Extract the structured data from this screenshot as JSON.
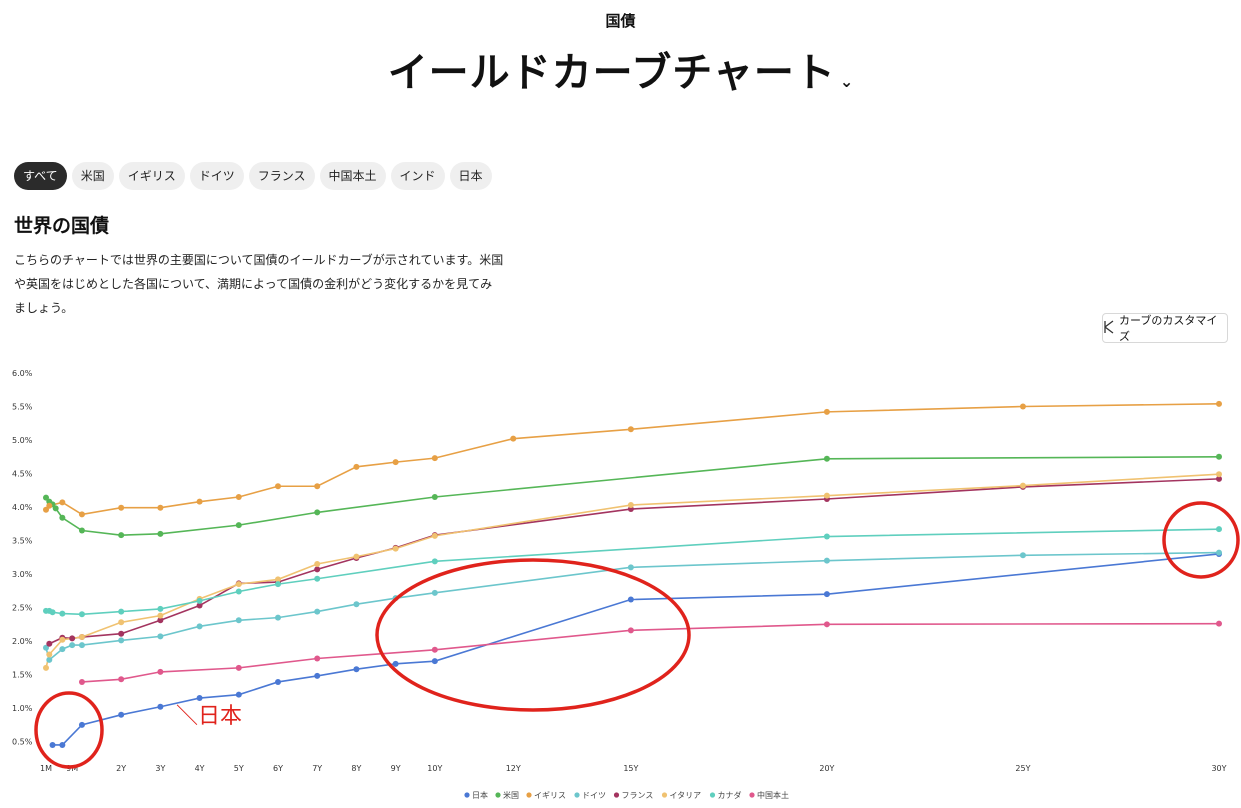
{
  "header": {
    "subtitle": "国債",
    "title": "イールドカーブチャート",
    "chevron": "⌄"
  },
  "tabs": [
    "すべて",
    "米国",
    "イギリス",
    "ドイツ",
    "フランス",
    "中国本土",
    "インド",
    "日本"
  ],
  "section": {
    "title": "世界の国債",
    "description": "こちらのチャートでは世界の主要国について国債のイールドカーブが示されています。米国や英国をはじめとした各国について、満期によって国債の金利がどう変化するかを見てみましょう。"
  },
  "customize_button": {
    "label": "カーブのカスタマイズ",
    "icon": "curve-sliders-icon"
  },
  "annotation": {
    "label": "＼日本",
    "color": "#e0231c"
  },
  "chart_data": {
    "type": "line",
    "x_unit": "years",
    "x_ticks": [
      {
        "x": 0.083,
        "label": "1M"
      },
      {
        "x": 0.75,
        "label": "9M"
      },
      {
        "x": 2,
        "label": "2Y"
      },
      {
        "x": 3,
        "label": "3Y"
      },
      {
        "x": 4,
        "label": "4Y"
      },
      {
        "x": 5,
        "label": "5Y"
      },
      {
        "x": 6,
        "label": "6Y"
      },
      {
        "x": 7,
        "label": "7Y"
      },
      {
        "x": 8,
        "label": "8Y"
      },
      {
        "x": 9,
        "label": "9Y"
      },
      {
        "x": 10,
        "label": "10Y"
      },
      {
        "x": 12,
        "label": "12Y"
      },
      {
        "x": 15,
        "label": "15Y"
      },
      {
        "x": 20,
        "label": "20Y"
      },
      {
        "x": 25,
        "label": "25Y"
      },
      {
        "x": 30,
        "label": "30Y"
      }
    ],
    "y_ticks": [
      "0.5%",
      "1.0%",
      "1.5%",
      "2.0%",
      "2.5%",
      "3.0%",
      "3.5%",
      "4.0%",
      "4.5%",
      "5.0%",
      "5.5%",
      "6.0%"
    ],
    "ylim": [
      0.3,
      6.0
    ],
    "legend_position": "bottom",
    "series": [
      {
        "name": "日本",
        "color": "#4a78d4",
        "points": [
          [
            0.25,
            0.45
          ],
          [
            0.5,
            0.45
          ],
          [
            1,
            0.75
          ],
          [
            2,
            0.9
          ],
          [
            3,
            1.02
          ],
          [
            4,
            1.15
          ],
          [
            5,
            1.2
          ],
          [
            6,
            1.39
          ],
          [
            7,
            1.48
          ],
          [
            8,
            1.58
          ],
          [
            9,
            1.66
          ],
          [
            10,
            1.7
          ],
          [
            15,
            2.62
          ],
          [
            20,
            2.7
          ],
          [
            30,
            3.3
          ]
        ]
      },
      {
        "name": "米国",
        "color": "#55b657",
        "points": [
          [
            0.083,
            4.14
          ],
          [
            0.167,
            4.08
          ],
          [
            0.25,
            4.04
          ],
          [
            0.33,
            3.98
          ],
          [
            0.5,
            3.84
          ],
          [
            1,
            3.65
          ],
          [
            2,
            3.58
          ],
          [
            3,
            3.6
          ],
          [
            5,
            3.73
          ],
          [
            7,
            3.92
          ],
          [
            10,
            4.15
          ],
          [
            20,
            4.72
          ],
          [
            30,
            4.75
          ]
        ]
      },
      {
        "name": "イギリス",
        "color": "#e7a045",
        "points": [
          [
            0.083,
            3.96
          ],
          [
            0.167,
            4.02
          ],
          [
            0.5,
            4.07
          ],
          [
            1,
            3.89
          ],
          [
            2,
            3.99
          ],
          [
            3,
            3.99
          ],
          [
            4,
            4.08
          ],
          [
            5,
            4.15
          ],
          [
            6,
            4.31
          ],
          [
            7,
            4.31
          ],
          [
            8,
            4.6
          ],
          [
            9,
            4.67
          ],
          [
            10,
            4.73
          ],
          [
            12,
            5.02
          ],
          [
            15,
            5.16
          ],
          [
            20,
            5.42
          ],
          [
            25,
            5.5
          ],
          [
            30,
            5.54
          ]
        ]
      },
      {
        "name": "ドイツ",
        "color": "#6cc6cc",
        "points": [
          [
            0.083,
            1.9
          ],
          [
            0.167,
            1.72
          ],
          [
            0.5,
            1.88
          ],
          [
            0.75,
            1.94
          ],
          [
            1,
            1.94
          ],
          [
            2,
            2.01
          ],
          [
            3,
            2.07
          ],
          [
            4,
            2.22
          ],
          [
            5,
            2.31
          ],
          [
            6,
            2.35
          ],
          [
            7,
            2.44
          ],
          [
            8,
            2.55
          ],
          [
            9,
            2.64
          ],
          [
            10,
            2.72
          ],
          [
            15,
            3.1
          ],
          [
            20,
            3.2
          ],
          [
            25,
            3.28
          ],
          [
            30,
            3.32
          ]
        ]
      },
      {
        "name": "フランス",
        "color": "#a3345f",
        "points": [
          [
            0.167,
            1.96
          ],
          [
            0.5,
            2.05
          ],
          [
            0.75,
            2.04
          ],
          [
            1,
            2.06
          ],
          [
            2,
            2.11
          ],
          [
            3,
            2.31
          ],
          [
            4,
            2.53
          ],
          [
            5,
            2.86
          ],
          [
            6,
            2.88
          ],
          [
            7,
            3.07
          ],
          [
            8,
            3.24
          ],
          [
            9,
            3.39
          ],
          [
            10,
            3.58
          ],
          [
            15,
            3.97
          ],
          [
            20,
            4.12
          ],
          [
            25,
            4.3
          ],
          [
            30,
            4.42
          ]
        ]
      },
      {
        "name": "イタリア",
        "color": "#f0c271",
        "points": [
          [
            0.083,
            1.6
          ],
          [
            0.167,
            1.8
          ],
          [
            0.5,
            2.02
          ],
          [
            1,
            2.06
          ],
          [
            2,
            2.28
          ],
          [
            3,
            2.38
          ],
          [
            4,
            2.63
          ],
          [
            5,
            2.85
          ],
          [
            6,
            2.92
          ],
          [
            7,
            3.15
          ],
          [
            8,
            3.26
          ],
          [
            9,
            3.38
          ],
          [
            10,
            3.57
          ],
          [
            15,
            4.03
          ],
          [
            20,
            4.17
          ],
          [
            25,
            4.32
          ],
          [
            30,
            4.49
          ]
        ]
      },
      {
        "name": "カナダ",
        "color": "#5fcfbe",
        "points": [
          [
            0.083,
            2.45
          ],
          [
            0.167,
            2.45
          ],
          [
            0.25,
            2.43
          ],
          [
            0.5,
            2.41
          ],
          [
            1,
            2.4
          ],
          [
            2,
            2.44
          ],
          [
            3,
            2.48
          ],
          [
            4,
            2.6
          ],
          [
            5,
            2.74
          ],
          [
            6,
            2.85
          ],
          [
            7,
            2.93
          ],
          [
            10,
            3.19
          ],
          [
            20,
            3.56
          ],
          [
            30,
            3.67
          ]
        ]
      },
      {
        "name": "中国本土",
        "color": "#e0588c",
        "points": [
          [
            1,
            1.39
          ],
          [
            2,
            1.43
          ],
          [
            3,
            1.54
          ],
          [
            5,
            1.6
          ],
          [
            7,
            1.74
          ],
          [
            10,
            1.87
          ],
          [
            15,
            2.16
          ],
          [
            20,
            2.25
          ],
          [
            30,
            2.26
          ]
        ]
      }
    ]
  }
}
